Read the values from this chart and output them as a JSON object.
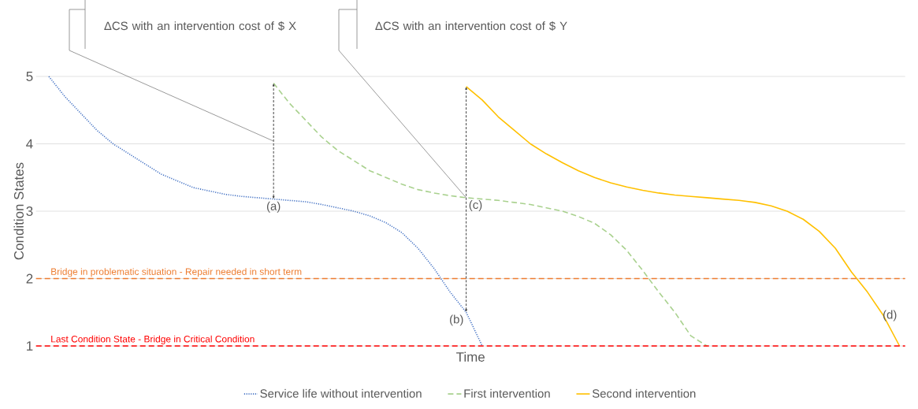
{
  "chart_data": {
    "type": "line",
    "xlabel": "Time",
    "ylabel": "Condition States",
    "categories": [
      null,
      null,
      null,
      null,
      null,
      null,
      null,
      null,
      null,
      null,
      null,
      null,
      null,
      null,
      null,
      null,
      null,
      null,
      null,
      null,
      null,
      null,
      null,
      null,
      null,
      null,
      null,
      null,
      null,
      null,
      null,
      null,
      null,
      null,
      null,
      null,
      null,
      null,
      null,
      null,
      null,
      null,
      null,
      null,
      null,
      null,
      null,
      null,
      null,
      null,
      null,
      null,
      null,
      null
    ],
    "series": [
      {
        "name": "Service life without intervention",
        "color": "#4472c4",
        "line_style": "dotted",
        "values": [
          5.0,
          4.7,
          4.45,
          4.2,
          4.0,
          3.85,
          3.7,
          3.55,
          3.45,
          3.35,
          3.3,
          3.25,
          3.22,
          3.2,
          3.18,
          3.16,
          3.14,
          3.1,
          3.05,
          3.0,
          2.93,
          2.83,
          2.68,
          2.45,
          2.15,
          1.8,
          1.5,
          1.0,
          null,
          null,
          null,
          null,
          null,
          null,
          null,
          null,
          null,
          null,
          null,
          null,
          null,
          null,
          null,
          null,
          null,
          null,
          null,
          null,
          null,
          null,
          null,
          null,
          null,
          null
        ]
      },
      {
        "name": "First intervention",
        "color": "#a9d18e",
        "line_style": "dashed",
        "values": [
          null,
          null,
          null,
          null,
          null,
          null,
          null,
          null,
          null,
          null,
          null,
          null,
          null,
          null,
          4.9,
          4.6,
          4.35,
          4.1,
          3.9,
          3.75,
          3.6,
          3.5,
          3.4,
          3.32,
          3.27,
          3.23,
          3.2,
          3.18,
          3.16,
          3.13,
          3.1,
          3.05,
          3.0,
          2.92,
          2.82,
          2.65,
          2.42,
          2.12,
          1.8,
          1.5,
          1.15,
          1.0,
          null,
          null,
          null,
          null,
          null,
          null,
          null,
          null,
          null,
          null,
          null,
          null
        ]
      },
      {
        "name": "Second intervention",
        "color": "#ffc000",
        "line_style": "solid",
        "values": [
          null,
          null,
          null,
          null,
          null,
          null,
          null,
          null,
          null,
          null,
          null,
          null,
          null,
          null,
          null,
          null,
          null,
          null,
          null,
          null,
          null,
          null,
          null,
          null,
          null,
          null,
          4.85,
          4.65,
          4.4,
          4.2,
          4.0,
          3.85,
          3.72,
          3.6,
          3.5,
          3.42,
          3.36,
          3.31,
          3.27,
          3.24,
          3.22,
          3.2,
          3.18,
          3.16,
          3.13,
          3.08,
          3.0,
          2.88,
          2.7,
          2.45,
          2.1,
          1.8,
          1.45,
          1.0
        ]
      }
    ],
    "ylim": [
      1,
      5
    ],
    "yticks": [
      1,
      2,
      3,
      4,
      5
    ],
    "grid": "y",
    "legend": "bottom",
    "tick_labels": "y",
    "marker": "none",
    "ref_lines": [
      {
        "axis": "y",
        "value": 2,
        "label": "Bridge in problematic situation - Repair needed in short term",
        "color": "#ed7d31",
        "line_style": "dashed"
      },
      {
        "axis": "y",
        "value": 1,
        "label": "Last Condition State - Bridge in Critical Condition",
        "color": "#ff0000",
        "line_style": "dashed"
      }
    ],
    "annotations": [
      "ΔCS with an intervention cost of $ X",
      "ΔCS with an intervention cost of $ Y",
      "(a)",
      "(b)",
      "(c)",
      "(d)"
    ]
  }
}
